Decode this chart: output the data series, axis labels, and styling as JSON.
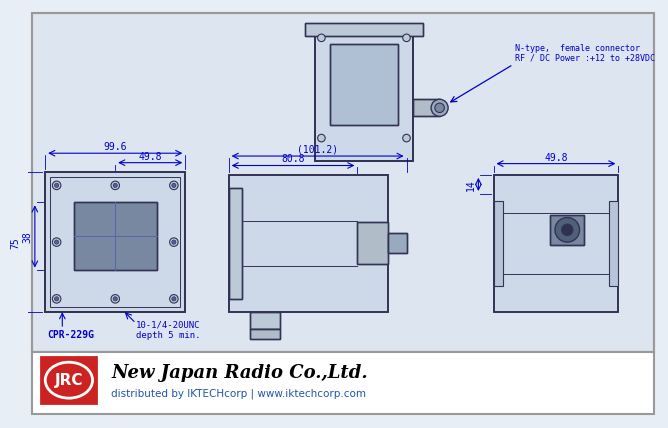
{
  "bg_color": "#e8eef5",
  "drawing_bg": "#dde5f0",
  "blue": "#0000CC",
  "dark_line": "#333355",
  "red_bg": "#cc2222",
  "dim_color": "#0000CC",
  "annotation_n_type": "N-type,  female connector\nRF / DC Power :+12 to +28VDC",
  "dim_99_6": "99.6",
  "dim_49_8_left": "49.8",
  "dim_38": "38",
  "dim_75": "75",
  "dim_101_2": "(101.2)",
  "dim_80_8": "80.8",
  "dim_49_8_right": "49.8",
  "dim_14": "14",
  "label_cpr": "CPR-229G",
  "label_thread": "10-1/4-20UNC\ndepth 5 min.",
  "footer_company": "New Japan Radio Co.,Ltd.",
  "footer_dist": "distributed by IKTECHcorp | www.iktechcorp.com"
}
